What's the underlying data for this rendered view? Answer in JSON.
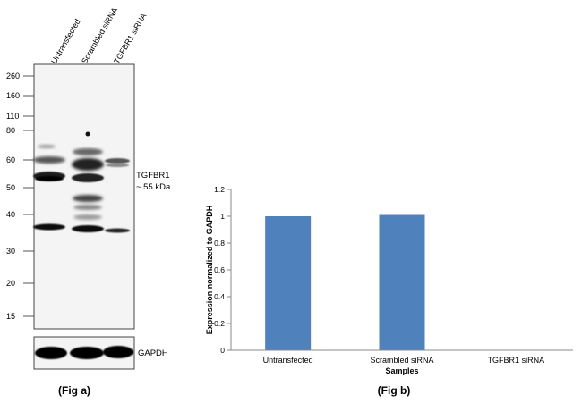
{
  "fig_a": {
    "caption": "(Fig a)",
    "lanes": [
      "Untransfected",
      "Scrambled siRNA",
      "TGFBR1 siRNA"
    ],
    "markers": [
      "260",
      "160",
      "110",
      "80",
      "60",
      "50",
      "40",
      "30",
      "20",
      "15"
    ],
    "band_label": "TGFBR1",
    "band_size": "~ 55 kDa",
    "loading_label": "GAPDH"
  },
  "fig_b": {
    "caption": "(Fig b)"
  },
  "chart_data": {
    "type": "bar",
    "categories": [
      "Untransfected",
      "Scrambled siRNA",
      "TGFBR1 siRNA"
    ],
    "values": [
      1.0,
      1.01,
      0.0
    ],
    "ylabel": "Expression  normalized to GAPDH",
    "xlabel": "Samples",
    "ylim": [
      0,
      1.2
    ],
    "yticks": [
      "0",
      "0.2",
      "0.4",
      "0.6",
      "0.8",
      "1",
      "1.2"
    ],
    "grid": false,
    "legend": "none",
    "bar_color": "#4f81bd"
  }
}
